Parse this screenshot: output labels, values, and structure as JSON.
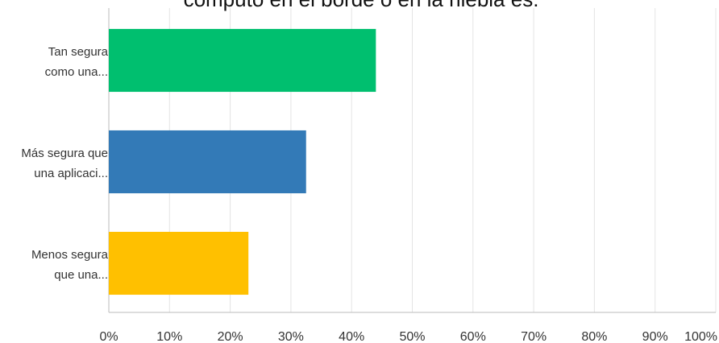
{
  "chart_data": {
    "type": "bar",
    "orientation": "horizontal",
    "title": "cómputo en el borde o en la niebla es:",
    "categories": [
      [
        "Tan segura",
        "como una..."
      ],
      [
        "Más segura que",
        "una aplicaci..."
      ],
      [
        "Menos segura",
        "que una..."
      ]
    ],
    "values": [
      44,
      32.5,
      23
    ],
    "colors": [
      "#00BF6F",
      "#337AB7",
      "#FFC000"
    ],
    "xlim": [
      0,
      100
    ],
    "ticks": [
      0,
      10,
      20,
      30,
      40,
      50,
      60,
      70,
      80,
      90,
      100
    ],
    "tick_labels": [
      "0%",
      "10%",
      "20%",
      "30%",
      "40%",
      "50%",
      "60%",
      "70%",
      "80%",
      "90%",
      "100%"
    ],
    "grid": true
  }
}
